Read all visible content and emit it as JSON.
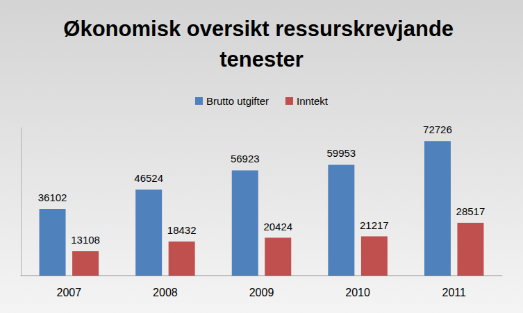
{
  "chart_data": {
    "type": "bar",
    "title": "Økonomisk oversikt ressurskrevjande tenester",
    "categories": [
      "2007",
      "2008",
      "2009",
      "2010",
      "2011"
    ],
    "series": [
      {
        "name": "Brutto utgifter",
        "color": "#4f81bd",
        "values": [
          36102,
          46524,
          56923,
          59953,
          72726
        ]
      },
      {
        "name": "Inntekt",
        "color": "#c0504d",
        "values": [
          13108,
          18432,
          20424,
          21217,
          28517
        ]
      }
    ],
    "ylim": [
      0,
      80000
    ],
    "grid": false,
    "legend": "top",
    "data_labels": true,
    "tick_labels": "x"
  }
}
